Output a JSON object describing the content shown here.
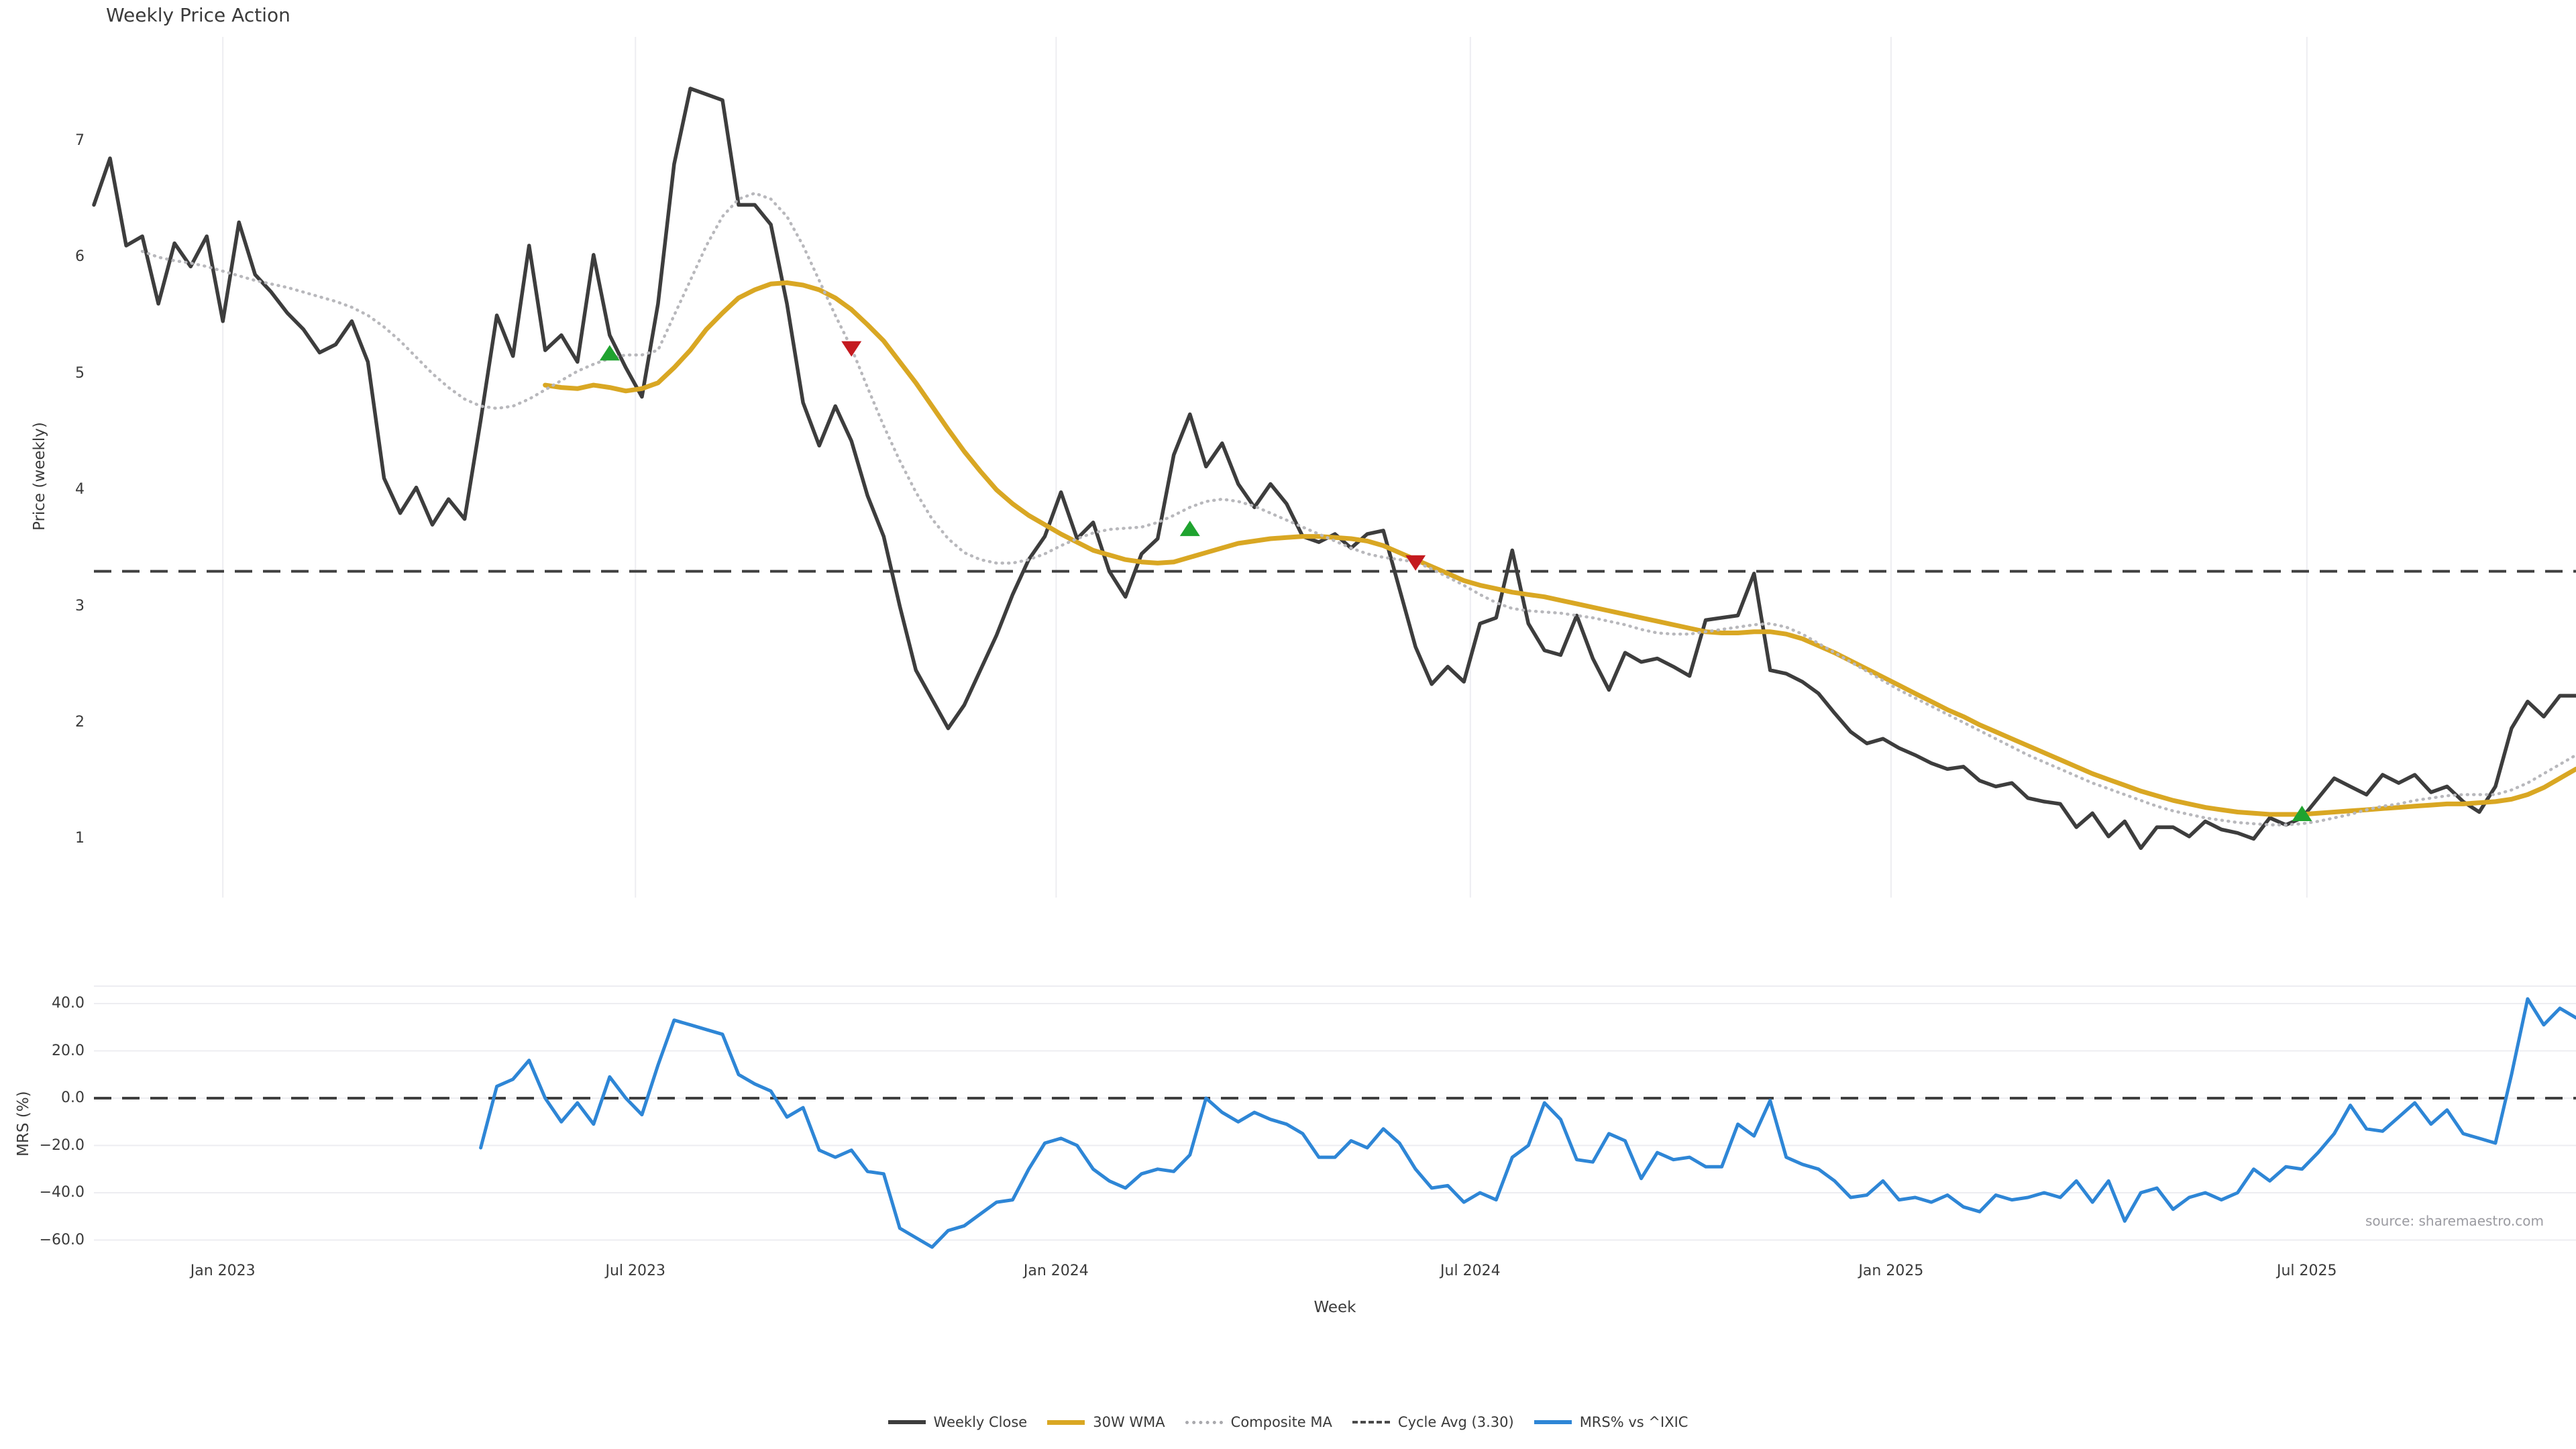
{
  "title": "Weekly Price Action",
  "price_axis_label": "Price (weekly)",
  "mrs_axis_label": "MRS (%)",
  "x_axis_label": "Week",
  "source": "source: sharemaestro.com",
  "legend": {
    "items": [
      {
        "label": "Weekly Close",
        "swatch": "solid-dark-line"
      },
      {
        "label": "30W WMA",
        "swatch": "solid-gold-line"
      },
      {
        "label": "Composite MA",
        "swatch": "dotted-gray-line"
      },
      {
        "label": "Cycle Avg (3.30)",
        "swatch": "dashed-dark-line"
      },
      {
        "label": "MRS% vs ^IXIC",
        "swatch": "solid-blue-line"
      }
    ]
  },
  "colors": {
    "weekly_close": "#3d3d3d",
    "wma_30w": "#d9a723",
    "composite_ma": "#b8b8bc",
    "cycle_avg": "#3f3f3f",
    "mrs": "#2e86d6",
    "buy_marker": "#1fa32f",
    "sell_marker": "#c41a1f",
    "gridline": "#ededf1",
    "tick_text": "#3a3a3a",
    "source_text": "#9b9ba1"
  },
  "chart_data": {
    "type": "line",
    "panels": [
      {
        "id": "price",
        "ylabel": "Price (weekly)",
        "ylim": [
          0.45,
          7.9
        ],
        "grid": "vertical-only"
      },
      {
        "id": "mrs",
        "ylabel": "MRS (%)",
        "ylim": [
          -72,
          47
        ],
        "grid": "horizontal-only"
      }
    ],
    "x_ticks": [
      {
        "label": "Jan 2023",
        "week": 8
      },
      {
        "label": "Jul 2023",
        "week": 33.6
      },
      {
        "label": "Jan 2024",
        "week": 59.7
      },
      {
        "label": "Jul 2024",
        "week": 85.4
      },
      {
        "label": "Jan 2025",
        "week": 111.5
      },
      {
        "label": "Jul 2025",
        "week": 137.3
      }
    ],
    "price_yticks": [
      {
        "label": "7",
        "value": 7
      },
      {
        "label": "6",
        "value": 6
      },
      {
        "label": "5",
        "value": 5
      },
      {
        "label": "4",
        "value": 4
      },
      {
        "label": "3",
        "value": 3
      },
      {
        "label": "2",
        "value": 2
      },
      {
        "label": "1",
        "value": 1
      }
    ],
    "mrs_yticks": [
      {
        "label": "40.0",
        "value": 40
      },
      {
        "label": "20.0",
        "value": 20
      },
      {
        "label": "0.0",
        "value": 0
      },
      {
        "label": "−20.0",
        "value": -20
      },
      {
        "label": "−40.0",
        "value": -40
      },
      {
        "label": "−60.0",
        "value": -60
      }
    ],
    "reference_lines": [
      {
        "name": "Cycle Avg (3.30)",
        "panel": "price",
        "value": 3.3,
        "style": "dashed",
        "color": "#3f3f3f"
      },
      {
        "name": "Zero line",
        "panel": "mrs",
        "value": 0,
        "style": "dashed",
        "color": "#3f3f3f"
      }
    ],
    "x_total_weeks": 154,
    "series": [
      {
        "name": "Weekly Close",
        "panel": "price",
        "style": "solid",
        "color": "#3d3d3d",
        "width": 5.5,
        "start_week": 0,
        "values": [
          6.45,
          6.85,
          6.1,
          6.18,
          5.6,
          6.12,
          5.92,
          6.18,
          5.45,
          6.3,
          5.85,
          5.7,
          5.52,
          5.38,
          5.18,
          5.25,
          5.45,
          5.1,
          4.1,
          3.8,
          4.02,
          3.7,
          3.92,
          3.75,
          4.6,
          5.5,
          5.15,
          6.1,
          5.2,
          5.33,
          5.1,
          6.02,
          5.33,
          5.05,
          4.8,
          5.6,
          6.8,
          7.45,
          7.4,
          7.35,
          6.45,
          6.45,
          6.28,
          5.6,
          4.75,
          4.38,
          4.72,
          4.42,
          3.95,
          3.6,
          3.0,
          2.45,
          2.2,
          1.95,
          2.15,
          2.45,
          2.75,
          3.1,
          3.4,
          3.6,
          3.98,
          3.58,
          3.72,
          3.3,
          3.08,
          3.45,
          3.58,
          4.3,
          4.65,
          4.2,
          4.4,
          4.05,
          3.85,
          4.05,
          3.88,
          3.6,
          3.55,
          3.62,
          3.5,
          3.62,
          3.65,
          3.15,
          2.65,
          2.33,
          2.48,
          2.35,
          2.85,
          2.9,
          3.48,
          2.85,
          2.62,
          2.58,
          2.92,
          2.55,
          2.28,
          2.6,
          2.52,
          2.55,
          2.48,
          2.4,
          2.88,
          2.9,
          2.92,
          3.28,
          2.45,
          2.42,
          2.35,
          2.25,
          2.08,
          1.92,
          1.82,
          1.86,
          1.78,
          1.72,
          1.65,
          1.6,
          1.62,
          1.5,
          1.45,
          1.48,
          1.35,
          1.32,
          1.3,
          1.1,
          1.22,
          1.02,
          1.15,
          0.92,
          1.1,
          1.1,
          1.02,
          1.15,
          1.08,
          1.05,
          1.0,
          1.18,
          1.12,
          1.18,
          1.35,
          1.52,
          1.45,
          1.38,
          1.55,
          1.48,
          1.55,
          1.4,
          1.45,
          1.32,
          1.23,
          1.45,
          1.95,
          2.18,
          2.05,
          2.23,
          2.23
        ]
      },
      {
        "name": "30W WMA",
        "panel": "price",
        "style": "solid",
        "color": "#d9a723",
        "width": 7,
        "start_week": 28,
        "values": [
          4.9,
          4.88,
          4.87,
          4.9,
          4.88,
          4.85,
          4.87,
          4.92,
          5.05,
          5.2,
          5.38,
          5.52,
          5.65,
          5.72,
          5.77,
          5.78,
          5.76,
          5.72,
          5.65,
          5.55,
          5.42,
          5.28,
          5.1,
          4.92,
          4.72,
          4.52,
          4.33,
          4.16,
          4.0,
          3.88,
          3.78,
          3.7,
          3.62,
          3.55,
          3.48,
          3.44,
          3.4,
          3.38,
          3.37,
          3.38,
          3.42,
          3.46,
          3.5,
          3.54,
          3.56,
          3.58,
          3.59,
          3.6,
          3.6,
          3.59,
          3.58,
          3.56,
          3.52,
          3.46,
          3.4,
          3.34,
          3.28,
          3.22,
          3.18,
          3.15,
          3.12,
          3.1,
          3.08,
          3.05,
          3.02,
          2.99,
          2.96,
          2.93,
          2.9,
          2.87,
          2.84,
          2.81,
          2.78,
          2.77,
          2.77,
          2.78,
          2.78,
          2.76,
          2.72,
          2.66,
          2.6,
          2.53,
          2.46,
          2.39,
          2.32,
          2.25,
          2.18,
          2.11,
          2.05,
          1.98,
          1.92,
          1.86,
          1.8,
          1.74,
          1.68,
          1.62,
          1.56,
          1.51,
          1.46,
          1.41,
          1.37,
          1.33,
          1.3,
          1.27,
          1.25,
          1.23,
          1.22,
          1.21,
          1.21,
          1.21,
          1.22,
          1.23,
          1.24,
          1.25,
          1.26,
          1.27,
          1.28,
          1.29,
          1.3,
          1.3,
          1.31,
          1.32,
          1.34,
          1.38,
          1.44,
          1.52,
          1.6
        ]
      },
      {
        "name": "Composite MA",
        "panel": "price",
        "style": "dotted",
        "color": "#b8b8bc",
        "width": 4.5,
        "start_week": 3,
        "values": [
          6.05,
          6.0,
          5.97,
          5.95,
          5.92,
          5.88,
          5.84,
          5.8,
          5.77,
          5.74,
          5.7,
          5.66,
          5.62,
          5.57,
          5.5,
          5.4,
          5.28,
          5.14,
          5.0,
          4.88,
          4.78,
          4.72,
          4.7,
          4.72,
          4.78,
          4.86,
          4.94,
          5.02,
          5.08,
          5.13,
          5.16,
          5.16,
          5.2,
          5.5,
          5.8,
          6.1,
          6.35,
          6.5,
          6.55,
          6.5,
          6.35,
          6.1,
          5.8,
          5.5,
          5.22,
          4.88,
          4.55,
          4.25,
          3.98,
          3.75,
          3.58,
          3.46,
          3.4,
          3.37,
          3.37,
          3.4,
          3.45,
          3.52,
          3.58,
          3.63,
          3.66,
          3.67,
          3.68,
          3.72,
          3.78,
          3.85,
          3.9,
          3.92,
          3.9,
          3.86,
          3.8,
          3.74,
          3.68,
          3.62,
          3.56,
          3.5,
          3.45,
          3.42,
          3.4,
          3.38,
          3.32,
          3.25,
          3.18,
          3.1,
          3.03,
          2.98,
          2.96,
          2.95,
          2.94,
          2.92,
          2.9,
          2.87,
          2.84,
          2.8,
          2.77,
          2.76,
          2.76,
          2.78,
          2.8,
          2.82,
          2.84,
          2.85,
          2.82,
          2.76,
          2.68,
          2.6,
          2.52,
          2.44,
          2.36,
          2.28,
          2.21,
          2.14,
          2.07,
          2.0,
          1.93,
          1.86,
          1.79,
          1.72,
          1.66,
          1.6,
          1.54,
          1.48,
          1.43,
          1.38,
          1.33,
          1.28,
          1.24,
          1.21,
          1.18,
          1.16,
          1.14,
          1.13,
          1.12,
          1.12,
          1.13,
          1.15,
          1.18,
          1.21,
          1.25,
          1.28,
          1.3,
          1.33,
          1.35,
          1.37,
          1.38,
          1.38,
          1.38,
          1.42,
          1.48,
          1.56,
          1.64,
          1.72
        ]
      },
      {
        "name": "MRS% vs ^IXIC",
        "panel": "mrs",
        "style": "solid",
        "color": "#2e86d6",
        "width": 5,
        "start_week": 24,
        "values": [
          -21,
          5,
          8,
          16,
          0,
          -10,
          -2,
          -11,
          9,
          0,
          -7,
          14,
          33,
          31,
          29,
          27,
          10,
          6,
          3,
          -8,
          -4,
          -22,
          -25,
          -22,
          -31,
          -32,
          -55,
          -59,
          -63,
          -56,
          -54,
          -49,
          -44,
          -43,
          -30,
          -19,
          -17,
          -20,
          -30,
          -35,
          -38,
          -32,
          -30,
          -31,
          -24,
          0,
          -6,
          -10,
          -6,
          -9,
          -11,
          -15,
          -25,
          -25,
          -18,
          -21,
          -13,
          -19,
          -30,
          -38,
          -37,
          -44,
          -40,
          -43,
          -25,
          -20,
          -2,
          -9,
          -26,
          -27,
          -15,
          -18,
          -34,
          -23,
          -26,
          -25,
          -29,
          -29,
          -11,
          -16,
          -1,
          -25,
          -28,
          -30,
          -35,
          -42,
          -41,
          -35,
          -43,
          -42,
          -44,
          -41,
          -46,
          -48,
          -41,
          -43,
          -42,
          -40,
          -42,
          -35,
          -44,
          -35,
          -52,
          -40,
          -38,
          -47,
          -42,
          -40,
          -43,
          -40,
          -30,
          -35,
          -29,
          -30,
          -23,
          -15,
          -3,
          -13,
          -14,
          -8,
          -2,
          -11,
          -5,
          -15,
          -17,
          -19,
          10,
          42,
          31,
          38,
          34
        ]
      }
    ],
    "markers": [
      {
        "signal": "buy",
        "shape": "triangle-up",
        "color": "#1fa32f",
        "week": 32,
        "price": 5.17
      },
      {
        "signal": "sell",
        "shape": "triangle-down",
        "color": "#c41a1f",
        "week": 47,
        "price": 5.22
      },
      {
        "signal": "buy",
        "shape": "triangle-up",
        "color": "#1fa32f",
        "week": 68,
        "price": 3.66
      },
      {
        "signal": "sell",
        "shape": "triangle-down",
        "color": "#c41a1f",
        "week": 82,
        "price": 3.38
      },
      {
        "signal": "buy",
        "shape": "triangle-up",
        "color": "#1fa32f",
        "week": 137,
        "price": 1.21
      }
    ]
  }
}
